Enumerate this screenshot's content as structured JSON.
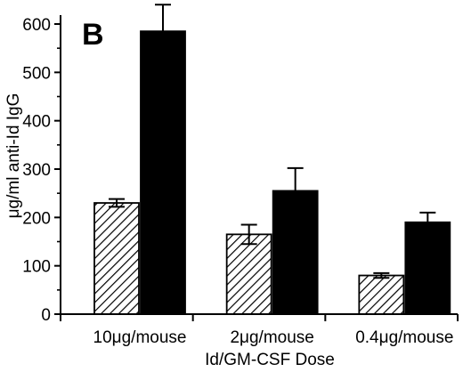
{
  "chart_data": {
    "type": "bar",
    "panel_label": "B",
    "title": "",
    "xlabel": "Id/GM-CSF Dose",
    "ylabel": "μg/ml anti-Id IgG",
    "ylim": [
      0,
      600
    ],
    "yticks": [
      0,
      100,
      200,
      300,
      400,
      500,
      600
    ],
    "grid": false,
    "legend": "none",
    "categories": [
      "10μg/mouse",
      "2μg/mouse",
      "0.4μg/mouse"
    ],
    "series": [
      {
        "pattern": "hatched",
        "color": "#ffffff",
        "values": [
          230,
          165,
          80
        ],
        "errors": [
          8,
          20,
          5
        ]
      },
      {
        "pattern": "solid",
        "color": "#000000",
        "values": [
          585,
          255,
          190
        ],
        "errors": [
          55,
          47,
          20
        ]
      }
    ]
  }
}
